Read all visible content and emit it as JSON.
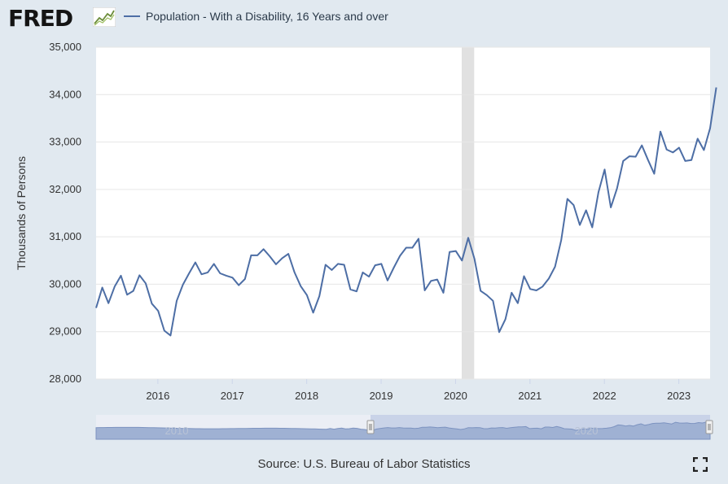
{
  "header": {
    "logo": "FRED",
    "legend_label": "Population - With a Disability, 16 Years and over"
  },
  "footer": {
    "source": "Source: U.S. Bureau of Labor Statistics"
  },
  "navigator": {
    "labels": [
      "2010",
      "2020"
    ]
  },
  "colors": {
    "series": "#4d6ea5",
    "recession": "#e1e1e1",
    "background": "#e1e9f0",
    "plot": "#ffffff",
    "navigator": "#9fb1d3"
  },
  "chart_data": {
    "type": "line",
    "title": "Population - With a Disability, 16 Years and over",
    "ylabel": "Thousands of Persons",
    "xlabel": "",
    "ylim": [
      28000,
      35000
    ],
    "y_ticks": [
      "28,000",
      "29,000",
      "30,000",
      "31,000",
      "32,000",
      "33,000",
      "34,000",
      "35,000"
    ],
    "y_tick_values": [
      28000,
      29000,
      30000,
      31000,
      32000,
      33000,
      34000,
      35000
    ],
    "x_ticks": [
      "2016",
      "2017",
      "2018",
      "2019",
      "2020",
      "2021",
      "2022",
      "2023"
    ],
    "x_tick_values": [
      2016,
      2017,
      2018,
      2019,
      2020,
      2021,
      2022,
      2023
    ],
    "xlim": [
      2015.17,
      2023.42
    ],
    "recession": [
      2020.083,
      2020.25
    ],
    "series": [
      {
        "name": "Population - With a Disability, 16 Years and over",
        "x_start": 2015.17,
        "x_step": 0.08333,
        "values": [
          29500,
          29930,
          29600,
          29950,
          30180,
          29780,
          29860,
          30190,
          30020,
          29590,
          29440,
          29020,
          28920,
          29650,
          29990,
          30230,
          30460,
          30210,
          30250,
          30430,
          30230,
          30180,
          30140,
          29980,
          30110,
          30610,
          30610,
          30740,
          30590,
          30420,
          30550,
          30640,
          30250,
          29960,
          29770,
          29400,
          29750,
          30410,
          30300,
          30430,
          30410,
          29890,
          29850,
          30250,
          30160,
          30400,
          30430,
          30080,
          30350,
          30600,
          30770,
          30770,
          30960,
          29870,
          30070,
          30100,
          29820,
          30680,
          30700,
          30500,
          30980,
          30540,
          29860,
          29770,
          29650,
          28990,
          29260,
          29820,
          29600,
          30170,
          29900,
          29870,
          29950,
          30120,
          30370,
          30930,
          31800,
          31670,
          31250,
          31560,
          31200,
          31940,
          32420,
          31620,
          32020,
          32600,
          32700,
          32690,
          32930,
          32620,
          32330,
          33220,
          32840,
          32780,
          32880,
          32600,
          32620,
          33070,
          32830,
          33290,
          34150
        ]
      }
    ]
  }
}
